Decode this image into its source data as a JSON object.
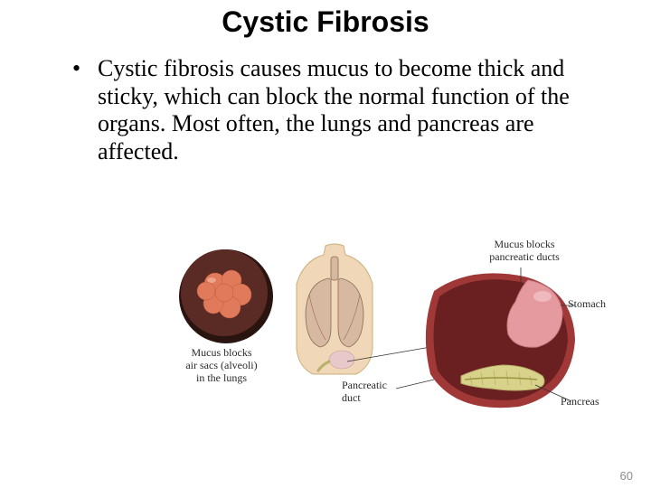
{
  "title": "Cystic Fibrosis",
  "bullet": "Cystic fibrosis causes mucus to become thick and sticky, which can block the normal function of the organs. Most often, the lungs and pancreas are affected.",
  "page_number": "60",
  "figure": {
    "captions": {
      "alveoli": "Mucus blocks\nair sacs (alveoli)\nin the lungs",
      "mucus_ducts": "Mucus blocks\npancreatic ducts",
      "stomach": "Stomach",
      "pancreatic_duct": "Pancreatic\nduct",
      "pancreas": "Pancreas"
    },
    "colors": {
      "alveoli_outer": "#5a2a24",
      "alveoli_inner": "#e07a5a",
      "alveoli_shadow": "#2a1410",
      "torso_skin": "#f0d7b8",
      "torso_outline": "#c8b07a",
      "lung": "#d7b8a0",
      "lung_dark": "#8a6a56",
      "stomach_fill": "#e59aa0",
      "stomach_shadow": "#c97a82",
      "pancreas_fill": "#d9d28a",
      "pancreas_shadow": "#b9b06a",
      "cavity_fill": "#a03838",
      "cavity_dark": "#6a2020",
      "line": "#333333",
      "caption_text": "#2a2a2a"
    },
    "caption_fontsize": 12
  }
}
